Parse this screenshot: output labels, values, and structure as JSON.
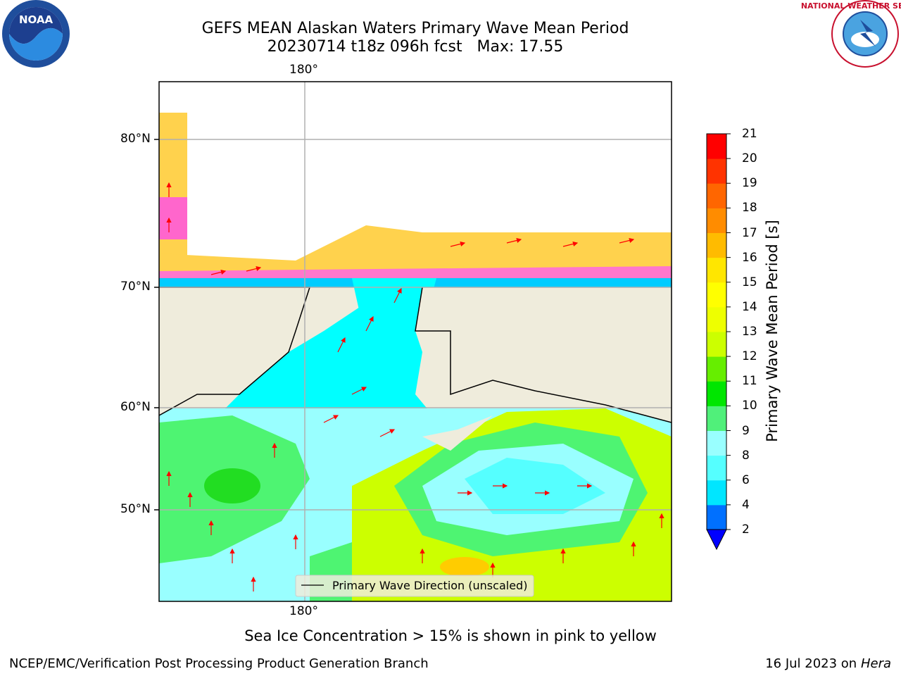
{
  "header": {
    "title_line1": "GEFS MEAN Alaskan Waters Primary Wave Mean Period",
    "title_line2": "20230714 t18z 096h fcst   Max: 17.55"
  },
  "logos": {
    "left": "NOAA",
    "right": "NATIONAL WEATHER SERVICE"
  },
  "map": {
    "lon_label_top": "180°",
    "lon_label_bottom": "180°",
    "lat_labels": [
      "80°N",
      "70°N",
      "60°N",
      "50°N"
    ],
    "legend_label": "Primary Wave Direction (unscaled)",
    "arrow_color": "#ff0000",
    "land_color": "#efecdc",
    "water_colors": {
      "cyan": "#00ffff",
      "light_cyan": "#99ffff",
      "green": "#4ef472",
      "yellow_green": "#ccff00",
      "yellow": "#ffff00"
    }
  },
  "colorbar": {
    "label": "Primary Wave Mean Period [s]",
    "ticks": [
      "2",
      "4",
      "6",
      "8",
      "9",
      "10",
      "11",
      "12",
      "13",
      "14",
      "15",
      "16",
      "17",
      "18",
      "19",
      "20",
      "21"
    ],
    "colors": [
      "#0070ff",
      "#00e6ff",
      "#55ffff",
      "#99ffff",
      "#50f07a",
      "#00e600",
      "#66ee00",
      "#ccff00",
      "#eeff00",
      "#ffff00",
      "#ffe600",
      "#ffbb00",
      "#ff8c00",
      "#ff6600",
      "#ff3300",
      "#ff0000"
    ],
    "under_color": "#0000ff"
  },
  "caption": "Sea Ice Concentration > 15% is shown in pink to yellow",
  "footer": {
    "left": "NCEP/EMC/Verification Post Processing Product Generation Branch",
    "right_date": "16 Jul 2023 on ",
    "right_host": "Hera"
  }
}
